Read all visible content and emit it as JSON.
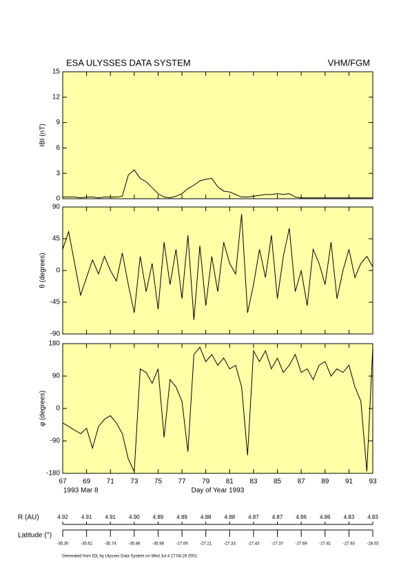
{
  "header": {
    "left": "ESA ULYSSES DATA SYSTEM",
    "right": "VHM/FGM"
  },
  "date_label": "1993 Mar  8",
  "ephemeris": {
    "r_label": "R (AU)",
    "r_values": [
      "4.92",
      "4.91",
      "4.91",
      "4.90",
      "4.89",
      "4.89",
      "4.88",
      "4.88",
      "4.87",
      "4.87",
      "4.86",
      "4.86",
      "4.83",
      "4.83"
    ],
    "lat_label": "Latitude (°)",
    "lat_values": [
      "-35.30",
      "-35.62",
      "-35.74",
      "-35.86",
      "-35.98",
      "-27.09",
      "-27.21",
      "-27.33",
      "-27.43",
      "-27.37",
      "-27.69",
      "-27.81",
      "-27.93",
      "-28.03"
    ]
  },
  "footer": "Generated from IDL by Ulysses Data System on Wed Jul  4 17:04:29 2001",
  "chart_data": [
    {
      "type": "line",
      "ylabel": "IBI (nT)",
      "background": "#ffffa8",
      "x": [
        67,
        67.5,
        68,
        68.5,
        69,
        69.5,
        70,
        70.5,
        71,
        71.5,
        72,
        72.5,
        73,
        73.5,
        74,
        74.5,
        75,
        75.5,
        76,
        76.5,
        77,
        77.5,
        78,
        78.5,
        79,
        79.5,
        80,
        80.5,
        81,
        81.5,
        82,
        82.5,
        83,
        83.5,
        84,
        84.5,
        85,
        85.5,
        86,
        86.5,
        87,
        87.5,
        88,
        88.5,
        89,
        89.5,
        90,
        90.5,
        91,
        91.5,
        92,
        92.5,
        93
      ],
      "values": [
        0.2,
        0.2,
        0.2,
        0.1,
        0.2,
        0.2,
        0.1,
        0.2,
        0.2,
        0.2,
        0.3,
        2.8,
        3.4,
        2.4,
        2.0,
        1.3,
        0.6,
        0.2,
        0.1,
        0.3,
        0.6,
        1.2,
        1.6,
        2.1,
        2.3,
        2.4,
        1.4,
        0.9,
        0.8,
        0.5,
        0.2,
        0.2,
        0.3,
        0.4,
        0.5,
        0.5,
        0.6,
        0.5,
        0.6,
        0.2,
        0.1,
        0.1,
        0.1,
        0.1,
        0.1,
        0.1,
        0.1,
        0.1,
        0.1,
        0.1,
        0.1,
        0.1,
        0.1
      ],
      "color": "#000000",
      "xlim": [
        67,
        93
      ],
      "ylim": [
        0,
        15
      ],
      "yticks": [
        0,
        3,
        6,
        9,
        12,
        15
      ]
    },
    {
      "type": "line",
      "ylabel": "θ (degrees)",
      "background": "#ffffa8",
      "x": [
        67,
        67.5,
        68,
        68.5,
        69,
        69.5,
        70,
        70.5,
        71,
        71.5,
        72,
        72.5,
        73,
        73.5,
        74,
        74.5,
        75,
        75.5,
        76,
        76.5,
        77,
        77.5,
        78,
        78.5,
        79,
        79.5,
        80,
        80.5,
        81,
        81.5,
        82,
        82.5,
        83,
        83.5,
        84,
        84.5,
        85,
        85.5,
        86,
        86.5,
        87,
        87.5,
        88,
        88.5,
        89,
        89.5,
        90,
        90.5,
        91,
        91.5,
        92,
        92.5,
        93
      ],
      "values": [
        30,
        55,
        10,
        -35,
        -10,
        15,
        -5,
        20,
        0,
        -15,
        25,
        -20,
        -60,
        20,
        -30,
        10,
        -55,
        40,
        -20,
        30,
        -40,
        50,
        -70,
        35,
        -50,
        20,
        -30,
        40,
        10,
        -5,
        80,
        -60,
        -20,
        30,
        -10,
        50,
        -40,
        20,
        60,
        -30,
        0,
        -50,
        30,
        10,
        -20,
        40,
        -40,
        0,
        30,
        -10,
        10,
        20,
        5
      ],
      "color": "#000000",
      "xlim": [
        67,
        93
      ],
      "ylim": [
        -90,
        90
      ],
      "yticks": [
        -90,
        -45,
        0,
        45,
        90
      ]
    },
    {
      "type": "line",
      "ylabel": "φ (degrees)",
      "xlabel": "Day of Year 1993",
      "background": "#ffffa8",
      "x": [
        67,
        67.5,
        68,
        68.5,
        69,
        69.5,
        70,
        70.5,
        71,
        71.5,
        72,
        72.5,
        73,
        73.5,
        74,
        74.5,
        75,
        75.5,
        76,
        76.5,
        77,
        77.5,
        78,
        78.5,
        79,
        79.5,
        80,
        80.5,
        81,
        81.5,
        82,
        82.5,
        83,
        83.5,
        84,
        84.5,
        85,
        85.5,
        86,
        86.5,
        87,
        87.5,
        88,
        88.5,
        89,
        89.5,
        90,
        90.5,
        91,
        91.5,
        92,
        92.5,
        93
      ],
      "values": [
        -40,
        -50,
        -60,
        -70,
        -55,
        -110,
        -50,
        -30,
        -20,
        -40,
        -70,
        -140,
        -175,
        110,
        100,
        70,
        110,
        -80,
        80,
        60,
        20,
        -120,
        150,
        170,
        130,
        150,
        120,
        140,
        110,
        120,
        60,
        -130,
        160,
        130,
        160,
        110,
        140,
        100,
        120,
        150,
        100,
        110,
        80,
        120,
        130,
        90,
        110,
        100,
        120,
        60,
        20,
        -175,
        170
      ],
      "color": "#000000",
      "xlim": [
        67,
        93
      ],
      "ylim": [
        -180,
        180
      ],
      "yticks": [
        -180,
        -90,
        0,
        90,
        180
      ],
      "xticks": [
        67,
        69,
        71,
        73,
        75,
        77,
        79,
        81,
        83,
        85,
        87,
        89,
        91,
        93
      ]
    }
  ]
}
